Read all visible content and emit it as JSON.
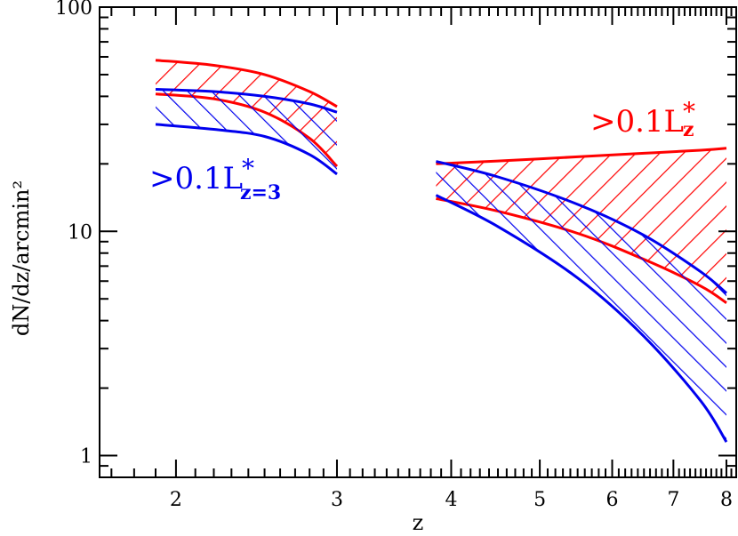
{
  "chart_data": {
    "type": "area",
    "xlabel": "z",
    "ylabel": "dN/dz/arcmin²",
    "x_scale": "log",
    "y_scale": "log",
    "xlim": [
      1.65,
      8.2
    ],
    "ylim": [
      0.8,
      100
    ],
    "x_ticks": [
      2,
      3,
      4,
      5,
      6,
      7,
      8
    ],
    "x_tick_labels": [
      "2",
      "3",
      "4",
      "5",
      "6",
      "7",
      "8"
    ],
    "y_ticks": [
      1,
      10,
      100
    ],
    "y_tick_labels": [
      "1",
      "10",
      "100"
    ],
    "grid": false,
    "colors": {
      "red": "#ff0000",
      "blue": "#0000ee",
      "axis": "#000000"
    },
    "series": [
      {
        "color": "red",
        "hatch": "forward-diagonal",
        "bands": [
          {
            "x": [
              1.9,
              2.2,
              2.5,
              2.8,
              3.0
            ],
            "upper": [
              58,
              55,
              50,
              42,
              36
            ],
            "lower": [
              41,
              39,
              34,
              26,
              19.5
            ]
          },
          {
            "x": [
              3.85,
              4.5,
              5.5,
              6.5,
              7.5,
              8.0
            ],
            "upper": [
              20,
              20.6,
              21.5,
              22.3,
              23,
              23.5
            ],
            "lower": [
              14,
              12.3,
              9.8,
              7.5,
              5.7,
              4.8
            ]
          }
        ]
      },
      {
        "color": "blue",
        "hatch": "back-diagonal",
        "bands": [
          {
            "x": [
              1.9,
              2.2,
              2.5,
              2.8,
              3.0
            ],
            "upper": [
              43,
              42,
              40,
              37,
              34
            ],
            "lower": [
              30,
              28.5,
              26.5,
              22,
              18
            ]
          },
          {
            "x": [
              3.85,
              4.5,
              5.5,
              6.5,
              7.5,
              8.0
            ],
            "upper": [
              20.5,
              17.5,
              13.2,
              9.6,
              6.6,
              5.3
            ],
            "lower": [
              14.5,
              10.5,
              6.2,
              3.4,
              1.75,
              1.15
            ]
          }
        ]
      }
    ],
    "annotations": [
      {
        "color": "red",
        "main": ">0.1L",
        "sup": "*",
        "sub": "z"
      },
      {
        "color": "blue",
        "main": ">0.1L",
        "sup": "*",
        "sub": "z=3"
      }
    ]
  }
}
